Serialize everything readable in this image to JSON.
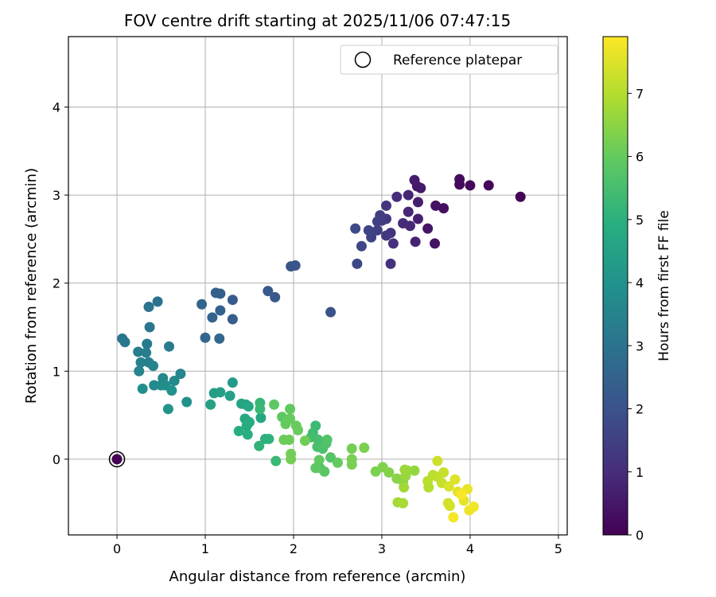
{
  "chart_data": {
    "type": "scatter",
    "title": "FOV centre drift starting at 2025/11/06 07:47:15",
    "xlabel": "Angular distance from reference (arcmin)",
    "ylabel": "Rotation from reference (arcmin)",
    "xlim": [
      -0.55,
      5.1
    ],
    "ylim": [
      -0.86,
      4.8
    ],
    "xticks": [
      0,
      1,
      2,
      3,
      4,
      5
    ],
    "yticks": [
      0,
      1,
      2,
      3,
      4
    ],
    "grid": true,
    "legend": {
      "position": "top-right",
      "entries": [
        "Reference platepar"
      ]
    },
    "reference_point": {
      "x": 0,
      "y": 0,
      "label": "Reference platepar"
    },
    "colorbar": {
      "label": "Hours from first FF file",
      "range": [
        0,
        7.9
      ],
      "ticks": [
        0,
        1,
        2,
        3,
        4,
        5,
        6,
        7
      ],
      "colormap": "viridis"
    },
    "points": [
      {
        "x": 0.0,
        "y": 0.0,
        "t": 0.0
      },
      {
        "x": 4.57,
        "y": 2.98,
        "t": 0.05
      },
      {
        "x": 4.21,
        "y": 3.11,
        "t": 0.1
      },
      {
        "x": 4.0,
        "y": 3.11,
        "t": 0.15
      },
      {
        "x": 3.88,
        "y": 3.12,
        "t": 0.2
      },
      {
        "x": 3.88,
        "y": 3.18,
        "t": 0.25
      },
      {
        "x": 3.7,
        "y": 2.85,
        "t": 0.3
      },
      {
        "x": 3.61,
        "y": 2.88,
        "t": 0.35
      },
      {
        "x": 3.6,
        "y": 2.45,
        "t": 0.4
      },
      {
        "x": 3.52,
        "y": 2.62,
        "t": 0.45
      },
      {
        "x": 3.4,
        "y": 3.1,
        "t": 0.5
      },
      {
        "x": 3.44,
        "y": 3.08,
        "t": 0.55
      },
      {
        "x": 3.37,
        "y": 3.17,
        "t": 0.6
      },
      {
        "x": 3.41,
        "y": 2.92,
        "t": 0.65
      },
      {
        "x": 3.41,
        "y": 2.73,
        "t": 0.7
      },
      {
        "x": 3.38,
        "y": 2.47,
        "t": 0.75
      },
      {
        "x": 3.3,
        "y": 3.0,
        "t": 0.8
      },
      {
        "x": 3.3,
        "y": 2.81,
        "t": 0.85
      },
      {
        "x": 3.32,
        "y": 2.65,
        "t": 0.9
      },
      {
        "x": 3.24,
        "y": 2.68,
        "t": 0.95
      },
      {
        "x": 3.17,
        "y": 2.98,
        "t": 1.0
      },
      {
        "x": 3.13,
        "y": 2.45,
        "t": 1.05
      },
      {
        "x": 3.1,
        "y": 2.22,
        "t": 1.1
      },
      {
        "x": 3.1,
        "y": 2.57,
        "t": 1.15
      },
      {
        "x": 3.05,
        "y": 2.88,
        "t": 1.2
      },
      {
        "x": 3.05,
        "y": 2.73,
        "t": 1.25
      },
      {
        "x": 3.05,
        "y": 2.54,
        "t": 1.3
      },
      {
        "x": 3.0,
        "y": 2.71,
        "t": 1.35
      },
      {
        "x": 2.98,
        "y": 2.77,
        "t": 1.4
      },
      {
        "x": 2.95,
        "y": 2.7,
        "t": 1.45
      },
      {
        "x": 2.95,
        "y": 2.6,
        "t": 1.5
      },
      {
        "x": 2.88,
        "y": 2.52,
        "t": 1.55
      },
      {
        "x": 2.85,
        "y": 2.6,
        "t": 1.6
      },
      {
        "x": 2.77,
        "y": 2.42,
        "t": 1.65
      },
      {
        "x": 2.72,
        "y": 2.22,
        "t": 1.7
      },
      {
        "x": 2.7,
        "y": 2.62,
        "t": 1.75
      },
      {
        "x": 2.42,
        "y": 1.67,
        "t": 2.0
      },
      {
        "x": 2.02,
        "y": 2.2,
        "t": 2.05
      },
      {
        "x": 1.97,
        "y": 2.19,
        "t": 2.1
      },
      {
        "x": 1.79,
        "y": 1.84,
        "t": 2.15
      },
      {
        "x": 1.71,
        "y": 1.91,
        "t": 2.2
      },
      {
        "x": 1.31,
        "y": 1.81,
        "t": 2.25
      },
      {
        "x": 1.31,
        "y": 1.59,
        "t": 2.3
      },
      {
        "x": 1.17,
        "y": 1.88,
        "t": 2.35
      },
      {
        "x": 1.12,
        "y": 1.89,
        "t": 2.4
      },
      {
        "x": 1.17,
        "y": 1.69,
        "t": 2.45
      },
      {
        "x": 1.08,
        "y": 1.61,
        "t": 2.5
      },
      {
        "x": 0.96,
        "y": 1.76,
        "t": 2.55
      },
      {
        "x": 1.0,
        "y": 1.38,
        "t": 2.6
      },
      {
        "x": 1.16,
        "y": 1.37,
        "t": 2.65
      },
      {
        "x": 0.46,
        "y": 1.79,
        "t": 2.95
      },
      {
        "x": 0.36,
        "y": 1.73,
        "t": 3.0
      },
      {
        "x": 0.37,
        "y": 1.5,
        "t": 3.05
      },
      {
        "x": 0.06,
        "y": 1.37,
        "t": 3.1
      },
      {
        "x": 0.09,
        "y": 1.33,
        "t": 3.15
      },
      {
        "x": 0.34,
        "y": 1.31,
        "t": 3.2
      },
      {
        "x": 0.59,
        "y": 1.28,
        "t": 3.25
      },
      {
        "x": 0.24,
        "y": 1.22,
        "t": 3.3
      },
      {
        "x": 0.33,
        "y": 1.21,
        "t": 3.35
      },
      {
        "x": 0.27,
        "y": 1.1,
        "t": 3.4
      },
      {
        "x": 0.36,
        "y": 1.1,
        "t": 3.45
      },
      {
        "x": 0.41,
        "y": 1.06,
        "t": 3.5
      },
      {
        "x": 0.25,
        "y": 1.0,
        "t": 3.55
      },
      {
        "x": 0.72,
        "y": 0.97,
        "t": 3.6
      },
      {
        "x": 0.52,
        "y": 0.92,
        "t": 3.65
      },
      {
        "x": 0.65,
        "y": 0.89,
        "t": 3.7
      },
      {
        "x": 0.42,
        "y": 0.84,
        "t": 3.75
      },
      {
        "x": 0.5,
        "y": 0.84,
        "t": 3.8
      },
      {
        "x": 0.55,
        "y": 0.84,
        "t": 3.85
      },
      {
        "x": 0.29,
        "y": 0.8,
        "t": 3.9
      },
      {
        "x": 0.62,
        "y": 0.78,
        "t": 3.95
      },
      {
        "x": 0.79,
        "y": 0.65,
        "t": 4.0
      },
      {
        "x": 0.58,
        "y": 0.57,
        "t": 4.05
      },
      {
        "x": 1.31,
        "y": 0.87,
        "t": 4.3
      },
      {
        "x": 1.1,
        "y": 0.75,
        "t": 4.35
      },
      {
        "x": 1.17,
        "y": 0.76,
        "t": 4.4
      },
      {
        "x": 1.28,
        "y": 0.72,
        "t": 4.45
      },
      {
        "x": 1.06,
        "y": 0.62,
        "t": 4.5
      },
      {
        "x": 1.41,
        "y": 0.63,
        "t": 4.55
      },
      {
        "x": 1.46,
        "y": 0.62,
        "t": 4.6
      },
      {
        "x": 1.49,
        "y": 0.6,
        "t": 4.65
      },
      {
        "x": 1.63,
        "y": 0.47,
        "t": 4.7
      },
      {
        "x": 1.45,
        "y": 0.46,
        "t": 4.75
      },
      {
        "x": 1.5,
        "y": 0.42,
        "t": 4.8
      },
      {
        "x": 1.47,
        "y": 0.38,
        "t": 4.85
      },
      {
        "x": 1.38,
        "y": 0.32,
        "t": 4.9
      },
      {
        "x": 1.48,
        "y": 0.28,
        "t": 4.95
      },
      {
        "x": 1.68,
        "y": 0.23,
        "t": 5.0
      },
      {
        "x": 1.72,
        "y": 0.23,
        "t": 5.05
      },
      {
        "x": 1.61,
        "y": 0.15,
        "t": 5.1
      },
      {
        "x": 1.62,
        "y": 0.64,
        "t": 5.2
      },
      {
        "x": 1.62,
        "y": 0.57,
        "t": 5.25
      },
      {
        "x": 1.8,
        "y": -0.02,
        "t": 5.3
      },
      {
        "x": 2.25,
        "y": 0.38,
        "t": 5.35
      },
      {
        "x": 2.22,
        "y": 0.3,
        "t": 5.4
      },
      {
        "x": 2.2,
        "y": 0.25,
        "t": 5.45
      },
      {
        "x": 2.28,
        "y": 0.22,
        "t": 5.5
      },
      {
        "x": 2.27,
        "y": 0.14,
        "t": 5.55
      },
      {
        "x": 2.33,
        "y": 0.12,
        "t": 5.6
      },
      {
        "x": 2.37,
        "y": 0.18,
        "t": 5.65
      },
      {
        "x": 2.38,
        "y": 0.22,
        "t": 5.7
      },
      {
        "x": 2.42,
        "y": 0.02,
        "t": 5.75
      },
      {
        "x": 2.3,
        "y": -0.1,
        "t": 5.8
      },
      {
        "x": 2.35,
        "y": -0.14,
        "t": 5.85
      },
      {
        "x": 2.25,
        "y": -0.1,
        "t": 5.9
      },
      {
        "x": 2.29,
        "y": -0.01,
        "t": 5.95
      },
      {
        "x": 2.5,
        "y": -0.04,
        "t": 6.0
      },
      {
        "x": 1.78,
        "y": 0.62,
        "t": 5.9
      },
      {
        "x": 1.87,
        "y": 0.48,
        "t": 5.9
      },
      {
        "x": 1.96,
        "y": 0.57,
        "t": 5.95
      },
      {
        "x": 1.96,
        "y": 0.46,
        "t": 6.0
      },
      {
        "x": 1.91,
        "y": 0.4,
        "t": 6.0
      },
      {
        "x": 2.05,
        "y": 0.33,
        "t": 6.05
      },
      {
        "x": 2.03,
        "y": 0.38,
        "t": 6.05
      },
      {
        "x": 1.89,
        "y": 0.22,
        "t": 6.1
      },
      {
        "x": 1.95,
        "y": 0.22,
        "t": 6.1
      },
      {
        "x": 2.13,
        "y": 0.21,
        "t": 6.15
      },
      {
        "x": 1.97,
        "y": 0.06,
        "t": 6.15
      },
      {
        "x": 1.97,
        "y": 0.0,
        "t": 6.2
      },
      {
        "x": 2.66,
        "y": 0.12,
        "t": 6.2
      },
      {
        "x": 2.66,
        "y": 0.0,
        "t": 6.25
      },
      {
        "x": 2.66,
        "y": -0.06,
        "t": 6.25
      },
      {
        "x": 2.8,
        "y": 0.13,
        "t": 6.3
      },
      {
        "x": 2.93,
        "y": -0.14,
        "t": 6.3
      },
      {
        "x": 3.01,
        "y": -0.09,
        "t": 6.35
      },
      {
        "x": 3.08,
        "y": -0.15,
        "t": 6.4
      },
      {
        "x": 3.17,
        "y": -0.22,
        "t": 6.45
      },
      {
        "x": 3.24,
        "y": -0.25,
        "t": 6.5
      },
      {
        "x": 3.29,
        "y": -0.13,
        "t": 6.55
      },
      {
        "x": 3.37,
        "y": -0.13,
        "t": 6.6
      },
      {
        "x": 3.27,
        "y": -0.19,
        "t": 6.65
      },
      {
        "x": 3.26,
        "y": -0.12,
        "t": 6.7
      },
      {
        "x": 3.25,
        "y": -0.32,
        "t": 6.75
      },
      {
        "x": 3.18,
        "y": -0.49,
        "t": 6.8
      },
      {
        "x": 3.24,
        "y": -0.5,
        "t": 6.85
      },
      {
        "x": 3.53,
        "y": -0.32,
        "t": 7.0
      },
      {
        "x": 3.52,
        "y": -0.25,
        "t": 7.05
      },
      {
        "x": 3.58,
        "y": -0.18,
        "t": 7.1
      },
      {
        "x": 3.63,
        "y": -0.2,
        "t": 7.15
      },
      {
        "x": 3.68,
        "y": -0.27,
        "t": 7.2
      },
      {
        "x": 3.7,
        "y": -0.15,
        "t": 7.25
      },
      {
        "x": 3.63,
        "y": -0.02,
        "t": 7.3
      },
      {
        "x": 3.75,
        "y": -0.5,
        "t": 7.35
      },
      {
        "x": 3.77,
        "y": -0.53,
        "t": 7.4
      },
      {
        "x": 3.76,
        "y": -0.31,
        "t": 7.45
      },
      {
        "x": 3.83,
        "y": -0.23,
        "t": 7.5
      },
      {
        "x": 3.86,
        "y": -0.37,
        "t": 7.55
      },
      {
        "x": 3.93,
        "y": -0.47,
        "t": 7.6
      },
      {
        "x": 3.97,
        "y": -0.34,
        "t": 7.65
      },
      {
        "x": 3.99,
        "y": -0.58,
        "t": 7.7
      },
      {
        "x": 4.04,
        "y": -0.54,
        "t": 7.75
      },
      {
        "x": 3.81,
        "y": -0.66,
        "t": 7.8
      },
      {
        "x": 3.9,
        "y": -0.4,
        "t": 7.85
      }
    ]
  }
}
